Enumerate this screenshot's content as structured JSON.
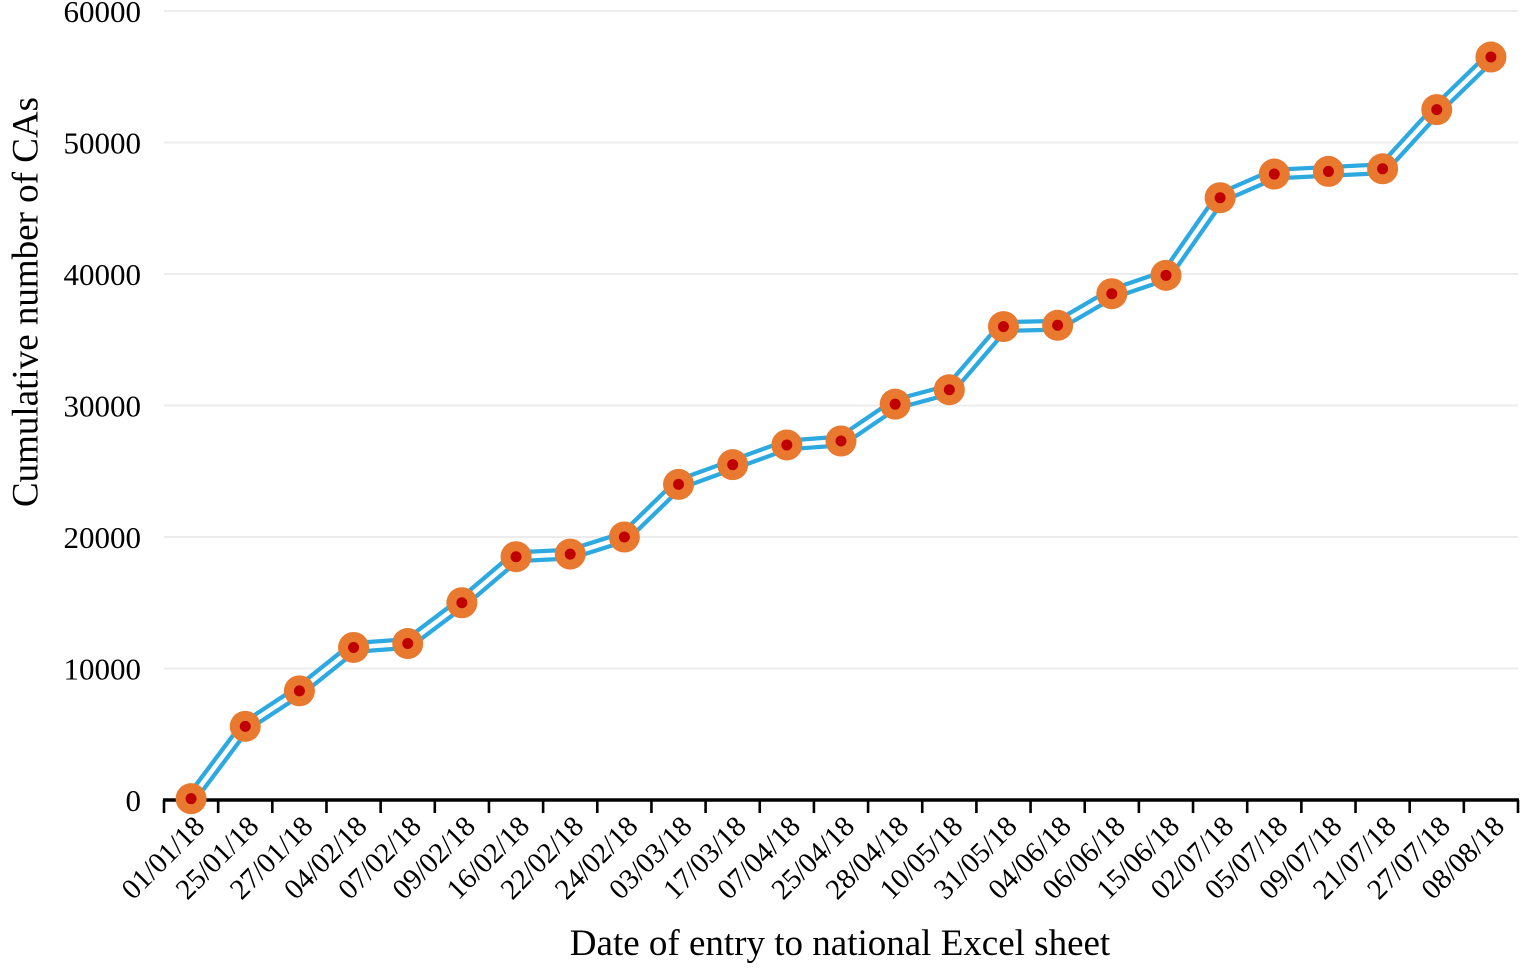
{
  "chart_data": {
    "type": "line",
    "title": "",
    "xlabel": "Date of entry to national Excel sheet",
    "ylabel": "Cumulative number of CAs",
    "categories": [
      "01/01/18",
      "25/01/18",
      "27/01/18",
      "04/02/18",
      "07/02/18",
      "09/02/18",
      "16/02/18",
      "22/02/18",
      "24/02/18",
      "03/03/18",
      "17/03/18",
      "07/04/18",
      "25/04/18",
      "28/04/18",
      "10/05/18",
      "31/05/18",
      "04/06/18",
      "06/06/18",
      "15/06/18",
      "02/07/18",
      "05/07/18",
      "09/07/18",
      "21/07/18",
      "27/07/18",
      "08/08/18"
    ],
    "values": [
      100,
      5600,
      8300,
      11600,
      11900,
      15000,
      18500,
      18700,
      20000,
      24000,
      25500,
      27000,
      27300,
      30100,
      31200,
      36000,
      36100,
      38500,
      39900,
      45800,
      47600,
      47800,
      48000,
      52500,
      56500
    ],
    "ylim": [
      0,
      60000
    ],
    "yticks": [
      0,
      10000,
      20000,
      30000,
      40000,
      50000,
      60000
    ],
    "grid": "horizontal",
    "legend": "none",
    "x_tick_rotation_deg": -45,
    "marker": {
      "shape": "circle-with-center-dot",
      "fill": "#E8792F",
      "center_dot": "#C00000"
    },
    "line": {
      "style": "double",
      "color": "#2CA9E1",
      "core": "#FFFFFF"
    },
    "colors": {
      "axis": "#000000",
      "text": "#000000",
      "gridline": "#ECECEC",
      "background": "#FFFFFF"
    }
  }
}
